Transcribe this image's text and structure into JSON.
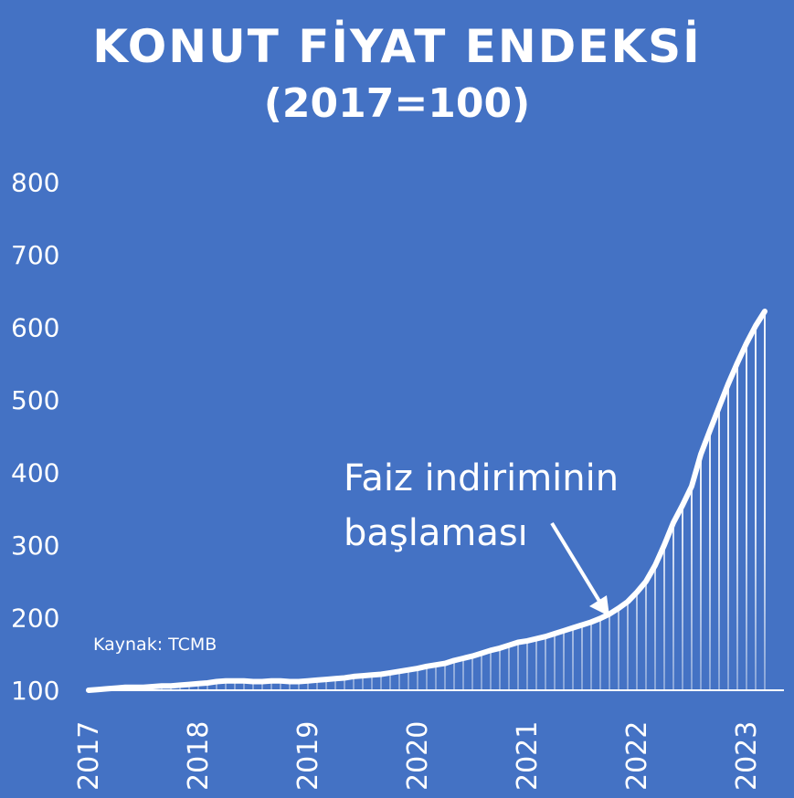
{
  "chart_data": {
    "type": "area",
    "title": "KONUT FİYAT ENDEKSİ",
    "subtitle": "(2017=100)",
    "xlabel": "",
    "ylabel": "",
    "x_tick_labels": [
      "2017",
      "2018",
      "2019",
      "2020",
      "2021",
      "2022",
      "2023"
    ],
    "y_tick_labels": [
      "100",
      "200",
      "300",
      "400",
      "500",
      "600",
      "700",
      "800"
    ],
    "ylim": [
      100,
      850
    ],
    "grid": false,
    "legend": "none",
    "series": [
      {
        "x": [
          "2017-01",
          "2017-02",
          "2017-03",
          "2017-04",
          "2017-05",
          "2017-06",
          "2017-07",
          "2017-08",
          "2017-09",
          "2017-10",
          "2017-11",
          "2017-12",
          "2018-01",
          "2018-02",
          "2018-03",
          "2018-04",
          "2018-05",
          "2018-06",
          "2018-07",
          "2018-08",
          "2018-09",
          "2018-10",
          "2018-11",
          "2018-12",
          "2019-01",
          "2019-02",
          "2019-03",
          "2019-04",
          "2019-05",
          "2019-06",
          "2019-07",
          "2019-08",
          "2019-09",
          "2019-10",
          "2019-11",
          "2019-12",
          "2020-01",
          "2020-02",
          "2020-03",
          "2020-04",
          "2020-05",
          "2020-06",
          "2020-07",
          "2020-08",
          "2020-09",
          "2020-10",
          "2020-11",
          "2020-12",
          "2021-01",
          "2021-02",
          "2021-03",
          "2021-04",
          "2021-05",
          "2021-06",
          "2021-07",
          "2021-08",
          "2021-09",
          "2021-10",
          "2021-11",
          "2021-12",
          "2022-01",
          "2022-02",
          "2022-03",
          "2022-04",
          "2022-05",
          "2022-06",
          "2022-07",
          "2022-08",
          "2022-09",
          "2022-10",
          "2022-11",
          "2022-12",
          "2023-01",
          "2023-02",
          "2023-03"
        ],
        "values": [
          100,
          101,
          102,
          103,
          104,
          104,
          104,
          105,
          106,
          106,
          107,
          108,
          109,
          110,
          112,
          113,
          113,
          113,
          112,
          112,
          113,
          113,
          112,
          112,
          113,
          114,
          115,
          116,
          117,
          119,
          120,
          121,
          122,
          124,
          126,
          128,
          130,
          133,
          135,
          137,
          141,
          144,
          147,
          151,
          155,
          158,
          162,
          166,
          168,
          171,
          174,
          178,
          182,
          186,
          190,
          194,
          199,
          205,
          213,
          222,
          235,
          250,
          272,
          300,
          331,
          355,
          381,
          425,
          458,
          490,
          522,
          551,
          578,
          602,
          622
        ]
      }
    ],
    "annotations": [
      "Faiz indiriminin",
      "başlaması"
    ],
    "source_note": "Kaynak: TCMB"
  }
}
